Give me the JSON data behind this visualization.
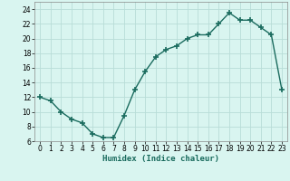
{
  "x": [
    0,
    1,
    2,
    3,
    4,
    5,
    6,
    7,
    8,
    9,
    10,
    11,
    12,
    13,
    14,
    15,
    16,
    17,
    18,
    19,
    20,
    21,
    22,
    23
  ],
  "y": [
    12,
    11.5,
    10,
    9,
    8.5,
    7,
    6.5,
    6.5,
    9.5,
    13,
    15.5,
    17.5,
    18.5,
    19,
    20,
    20.5,
    20.5,
    22,
    23.5,
    22.5,
    22.5,
    21.5,
    20.5,
    13
  ],
  "line_color": "#1a6b5e",
  "marker": "+",
  "marker_size": 4,
  "marker_linewidth": 1.2,
  "line_width": 1.0,
  "bg_color": "#d9f5f0",
  "grid_color": "#b8ddd7",
  "xlabel": "Humidex (Indice chaleur)",
  "xlim": [
    -0.5,
    23.5
  ],
  "ylim": [
    6,
    25
  ],
  "yticks": [
    6,
    8,
    10,
    12,
    14,
    16,
    18,
    20,
    22,
    24
  ],
  "xticks": [
    0,
    1,
    2,
    3,
    4,
    5,
    6,
    7,
    8,
    9,
    10,
    11,
    12,
    13,
    14,
    15,
    16,
    17,
    18,
    19,
    20,
    21,
    22,
    23
  ],
  "tick_fontsize": 5.5,
  "label_fontsize": 6.5,
  "spine_color": "#888888"
}
